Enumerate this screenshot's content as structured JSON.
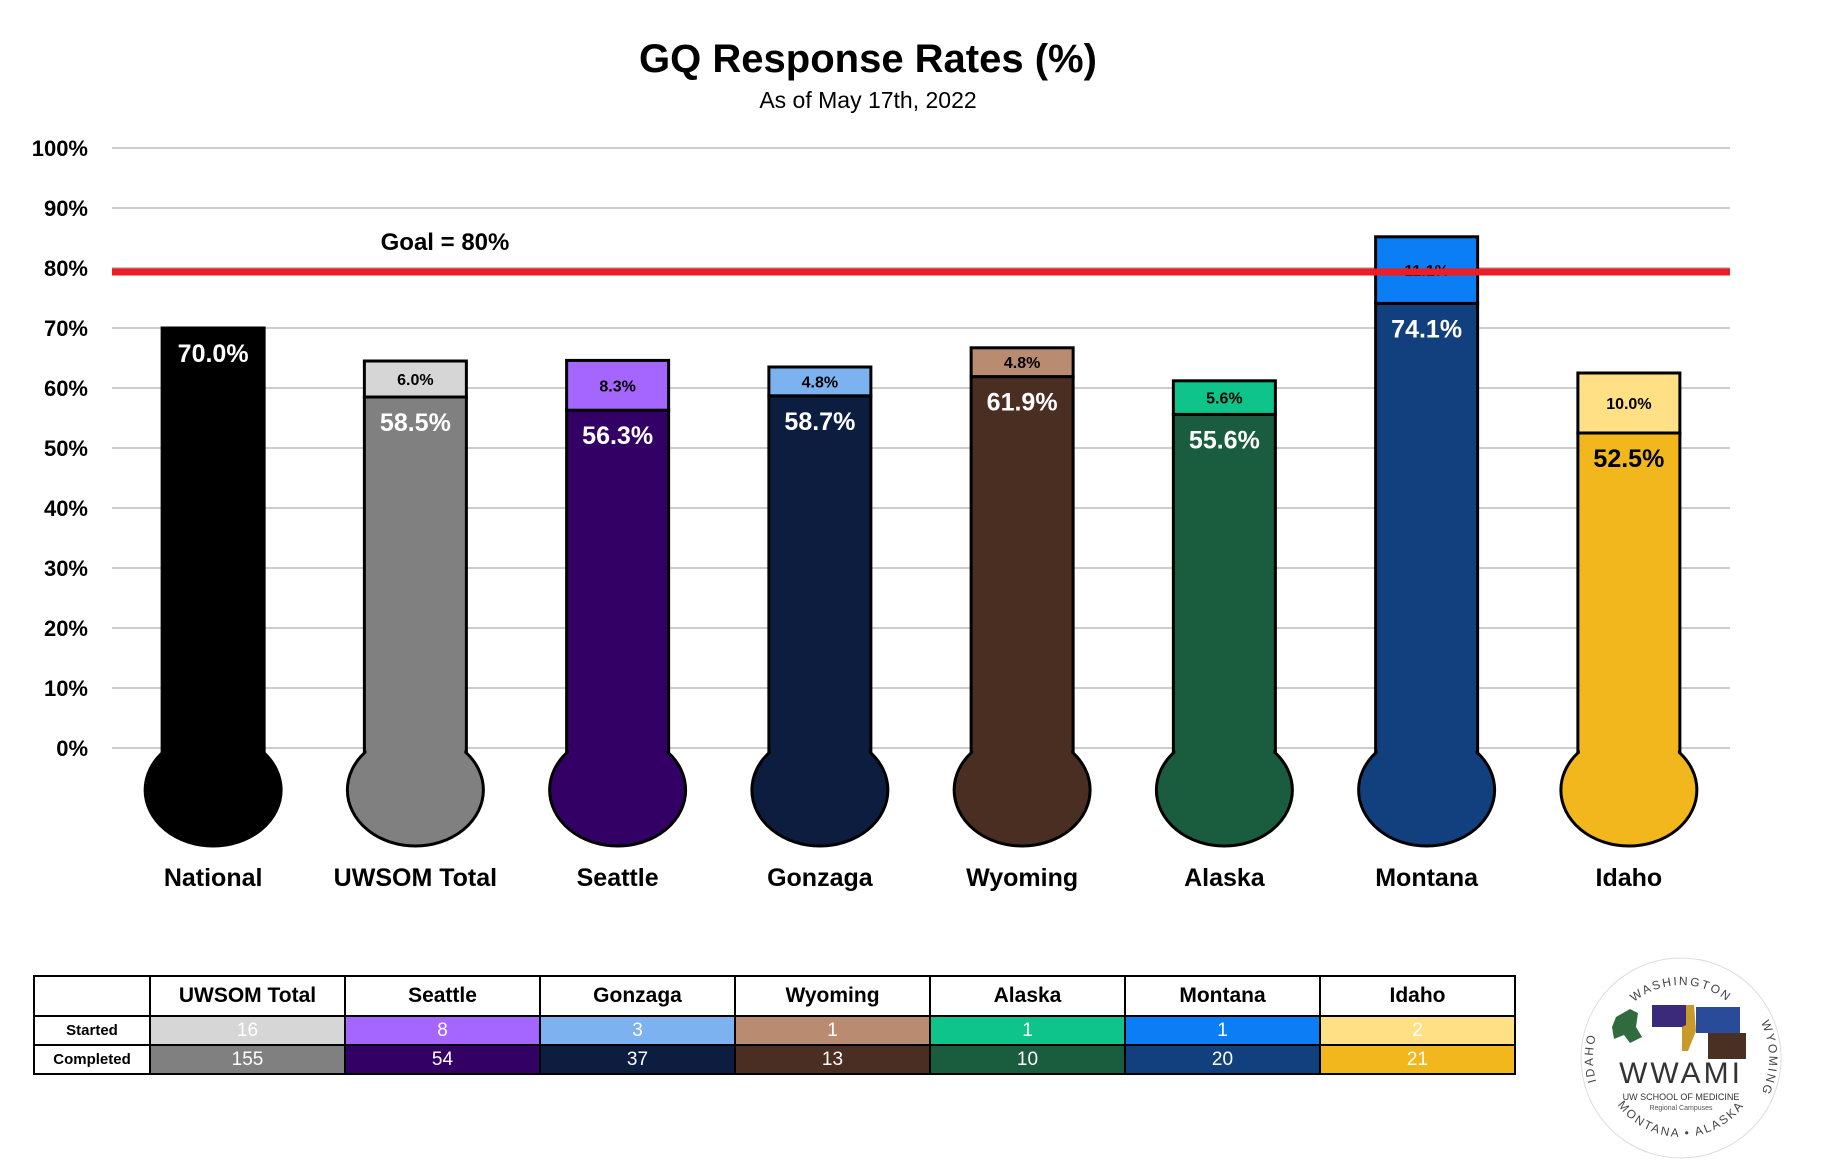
{
  "title": "GQ Response Rates (%)",
  "subtitle": "As of May 17th, 2022",
  "goal_label": "Goal = 80%",
  "chart_data": {
    "type": "bar",
    "stacked": true,
    "title": "GQ Response Rates (%)",
    "subtitle": "As of May 17th, 2022",
    "ylim": [
      0,
      100
    ],
    "yticks": [
      "0%",
      "10%",
      "20%",
      "30%",
      "40%",
      "50%",
      "60%",
      "70%",
      "80%",
      "90%",
      "100%"
    ],
    "goal": 80,
    "grid": true,
    "categories": [
      "National",
      "UWSOM Total",
      "Seattle",
      "Gonzaga",
      "Wyoming",
      "Alaska",
      "Montana",
      "Idaho"
    ],
    "series": [
      {
        "values": [
          70.0,
          58.5,
          56.3,
          58.7,
          61.9,
          55.6,
          74.1,
          52.5
        ],
        "labels": [
          "70.0%",
          "58.5%",
          "56.3%",
          "58.7%",
          "61.9%",
          "55.6%",
          "74.1%",
          "52.5%"
        ]
      },
      {
        "values": [
          null,
          6.0,
          8.3,
          4.8,
          4.8,
          5.6,
          11.1,
          10.0
        ],
        "labels": [
          "",
          "6.0%",
          "8.3%",
          "4.8%",
          "4.8%",
          "5.6%",
          "11.1%",
          "10.0%"
        ]
      }
    ],
    "colors": {
      "completed": [
        "#000000",
        "#808080",
        "#330066",
        "#0c1d40",
        "#4a2e22",
        "#1a5c3e",
        "#123f7e",
        "#f1b71c"
      ],
      "started": [
        "",
        "#d6d6d6",
        "#a566ff",
        "#7cb2f0",
        "#b98b70",
        "#0ec48b",
        "#0b7ef5",
        "#ffe085"
      ],
      "goal_line": "#ee1c24"
    }
  },
  "table": {
    "columns": [
      "UWSOM Total",
      "Seattle",
      "Gonzaga",
      "Wyoming",
      "Alaska",
      "Montana",
      "Idaho"
    ],
    "rows": [
      {
        "label": "Started",
        "values": [
          "16",
          "8",
          "3",
          "1",
          "1",
          "1",
          "2"
        ]
      },
      {
        "label": "Completed",
        "values": [
          "155",
          "54",
          "37",
          "13",
          "10",
          "20",
          "21"
        ]
      }
    ],
    "started_colors": [
      "#d6d6d6",
      "#a566ff",
      "#7cb2f0",
      "#b98b70",
      "#0ec48b",
      "#0b7ef5",
      "#ffe085"
    ],
    "completed_colors": [
      "#808080",
      "#330066",
      "#0c1d40",
      "#4a2e22",
      "#1a5c3e",
      "#123f7e",
      "#f1b71c"
    ]
  },
  "logo": {
    "name": "WWAMI",
    "line1": "UW SCHOOL OF MEDICINE",
    "line2": "Regional Campuses",
    "ring_top": "WASHINGTON",
    "ring_left": "IDAHO",
    "ring_right": "WYOMING",
    "ring_bottom": "MONTANA • ALASKA"
  }
}
